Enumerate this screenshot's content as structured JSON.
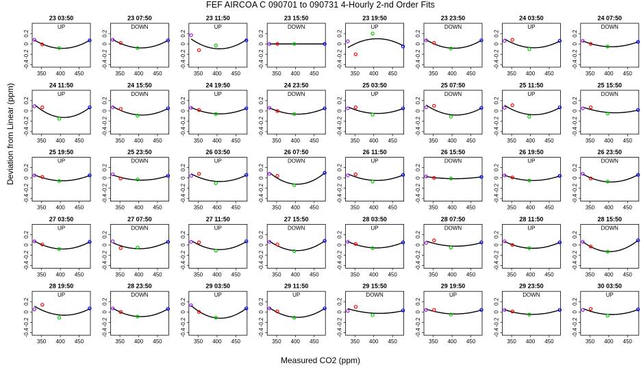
{
  "chart_data": {
    "type": "scatter",
    "title": "FEF   AIRCOA C   090701 to 090731   4-Hourly 2-nd Order Fits",
    "xlabel": "Measured CO2 (ppm)",
    "ylabel": "Deviation from Linear (ppm)",
    "xlim": [
      325,
      480
    ],
    "ylim": [
      -0.45,
      0.4
    ],
    "xticks": [
      350,
      400,
      450
    ],
    "yticks": [
      -0.4,
      -0.2,
      0.0,
      0.2
    ],
    "ytick_labels": [
      "-0.4",
      "-0.2",
      "0",
      "0.2"
    ],
    "standard_x": [
      331,
      352,
      397,
      478
    ],
    "standard_colors": [
      "#a020f0",
      "#ff0000",
      "#00cc00",
      "#0000ff"
    ],
    "fit_color": "#000000",
    "panels": [
      {
        "label": "23 03:50",
        "direction": "UP",
        "points": [
          0.08,
          -0.01,
          -0.08,
          0.07
        ]
      },
      {
        "label": "23 07:50",
        "direction": "DOWN",
        "points": [
          0.08,
          0.02,
          -0.08,
          0.07
        ]
      },
      {
        "label": "23 11:50",
        "direction": "UP",
        "points": [
          0.17,
          -0.12,
          -0.03,
          0.07
        ]
      },
      {
        "label": "23 15:50",
        "direction": "DOWN",
        "points": [
          0.0,
          0.0,
          0.0,
          0.0
        ]
      },
      {
        "label": "23 19:50",
        "direction": "UP",
        "points": [
          0.05,
          -0.2,
          0.2,
          -0.05
        ]
      },
      {
        "label": "23 23:50",
        "direction": "DOWN",
        "points": [
          0.07,
          0.02,
          -0.09,
          0.07
        ]
      },
      {
        "label": "24 03:50",
        "direction": "UP",
        "points": [
          0.06,
          0.08,
          -0.1,
          0.06
        ]
      },
      {
        "label": "24 07:50",
        "direction": "DOWN",
        "points": [
          0.06,
          0.0,
          -0.05,
          0.04
        ]
      },
      {
        "label": "24 11:50",
        "direction": "UP",
        "points": [
          0.09,
          0.07,
          -0.15,
          0.07
        ]
      },
      {
        "label": "24 15:50",
        "direction": "DOWN",
        "points": [
          0.07,
          0.04,
          -0.09,
          0.05
        ]
      },
      {
        "label": "24 19:50",
        "direction": "UP",
        "points": [
          0.06,
          0.02,
          -0.06,
          0.05
        ]
      },
      {
        "label": "24 23:50",
        "direction": "DOWN",
        "points": [
          0.06,
          0.0,
          -0.06,
          0.05
        ]
      },
      {
        "label": "25 03:50",
        "direction": "UP",
        "points": [
          0.05,
          0.07,
          -0.07,
          0.05
        ]
      },
      {
        "label": "25 07:50",
        "direction": "DOWN",
        "points": [
          0.07,
          0.1,
          -0.11,
          0.06
        ]
      },
      {
        "label": "25 11:50",
        "direction": "UP",
        "points": [
          0.06,
          0.11,
          -0.11,
          0.07
        ]
      },
      {
        "label": "25 15:50",
        "direction": "DOWN",
        "points": [
          0.05,
          0.07,
          -0.05,
          0.02
        ]
      },
      {
        "label": "25 19:50",
        "direction": "UP",
        "points": [
          0.05,
          0.02,
          -0.06,
          0.05
        ]
      },
      {
        "label": "25 23:50",
        "direction": "DOWN",
        "points": [
          0.07,
          -0.01,
          -0.03,
          0.04
        ]
      },
      {
        "label": "26 03:50",
        "direction": "UP",
        "points": [
          0.04,
          0.08,
          -0.1,
          0.06
        ]
      },
      {
        "label": "26 07:50",
        "direction": "DOWN",
        "points": [
          0.08,
          0.04,
          -0.14,
          0.1
        ]
      },
      {
        "label": "26 11:50",
        "direction": "UP",
        "points": [
          0.05,
          0.07,
          -0.07,
          0.06
        ]
      },
      {
        "label": "26 15:50",
        "direction": "DOWN",
        "points": [
          0.03,
          0.0,
          -0.01,
          0.02
        ]
      },
      {
        "label": "26 19:50",
        "direction": "UP",
        "points": [
          0.05,
          0.01,
          -0.05,
          0.04
        ]
      },
      {
        "label": "26 23:50",
        "direction": "DOWN",
        "points": [
          0.08,
          -0.01,
          -0.07,
          0.06
        ]
      },
      {
        "label": "27 03:50",
        "direction": "UP",
        "points": [
          0.07,
          0.01,
          -0.08,
          0.06
        ]
      },
      {
        "label": "27 07:50",
        "direction": "DOWN",
        "points": [
          0.07,
          -0.06,
          -0.05,
          0.06
        ]
      },
      {
        "label": "27 11:50",
        "direction": "UP",
        "points": [
          0.06,
          0.05,
          -0.11,
          0.07
        ]
      },
      {
        "label": "27 15:50",
        "direction": "DOWN",
        "points": [
          0.06,
          0.01,
          -0.12,
          0.08
        ]
      },
      {
        "label": "28 03:50",
        "direction": "UP",
        "points": [
          0.06,
          0.02,
          -0.06,
          0.05
        ]
      },
      {
        "label": "28 07:50",
        "direction": "DOWN",
        "points": [
          0.04,
          0.09,
          -0.05,
          0.05
        ]
      },
      {
        "label": "28 11:50",
        "direction": "UP",
        "points": [
          0.07,
          0.0,
          -0.06,
          0.05
        ]
      },
      {
        "label": "28 15:50",
        "direction": "DOWN",
        "points": [
          0.06,
          -0.03,
          -0.13,
          0.09
        ]
      },
      {
        "label": "28 19:50",
        "direction": "UP",
        "points": [
          0.05,
          0.14,
          -0.11,
          0.07
        ]
      },
      {
        "label": "28 23:50",
        "direction": "DOWN",
        "points": [
          0.07,
          0.0,
          -0.09,
          0.06
        ]
      },
      {
        "label": "29 03:50",
        "direction": "UP",
        "points": [
          0.13,
          0.0,
          -0.11,
          0.07
        ]
      },
      {
        "label": "29 11:50",
        "direction": "UP",
        "points": [
          0.07,
          0.01,
          -0.11,
          0.07
        ]
      },
      {
        "label": "29 15:50",
        "direction": "DOWN",
        "points": [
          0.02,
          0.1,
          -0.06,
          0.03
        ]
      },
      {
        "label": "29 19:50",
        "direction": "UP",
        "points": [
          0.04,
          0.04,
          -0.05,
          0.04
        ]
      },
      {
        "label": "29 23:50",
        "direction": "DOWN",
        "points": [
          0.04,
          0.01,
          -0.05,
          0.04
        ]
      },
      {
        "label": "30 03:50",
        "direction": "UP",
        "points": [
          0.04,
          0.06,
          -0.07,
          0.05
        ]
      }
    ]
  }
}
